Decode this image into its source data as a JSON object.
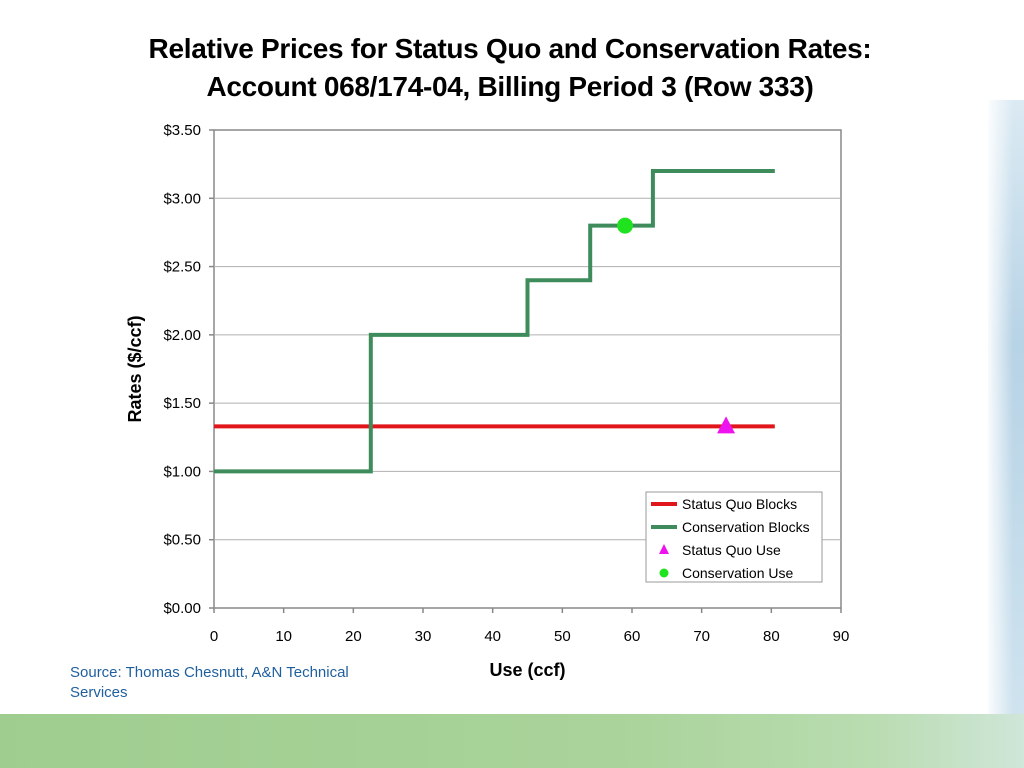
{
  "title_line1": "Relative Prices for Status Quo and Conservation Rates:",
  "title_line2": "Account 068/174-04, Billing Period 3 (Row 333)",
  "source": "Source:  Thomas Chesnutt, A&N Technical Services",
  "colors": {
    "status_quo": "#e0161b",
    "conservation": "#3e8c5c",
    "status_quo_use": "#ee12ee",
    "conservation_use": "#1ee31e"
  },
  "chart_data": {
    "type": "line",
    "title": "Relative Prices for Status Quo and Conservation Rates: Account 068/174-04, Billing Period 3 (Row 333)",
    "xlabel": "Use (ccf)",
    "ylabel": "Rates ($/ccf)",
    "xlim": [
      0,
      90
    ],
    "ylim": [
      0,
      3.5
    ],
    "xticks": [
      0,
      10,
      20,
      30,
      40,
      50,
      60,
      70,
      80,
      90
    ],
    "xtick_labels": [
      "0",
      "10",
      "20",
      "30",
      "40",
      "50",
      "60",
      "70",
      "80",
      "90"
    ],
    "yticks": [
      0,
      0.5,
      1.0,
      1.5,
      2.0,
      2.5,
      3.0,
      3.5
    ],
    "ytick_labels": [
      "$0.00",
      "$0.50",
      "$1.00",
      "$1.50",
      "$2.00",
      "$2.50",
      "$3.00",
      "$3.50"
    ],
    "grid": "horizontal",
    "legend_position": "bottom-right",
    "series": [
      {
        "name": "Status Quo Blocks",
        "kind": "step-line",
        "points": [
          [
            0,
            1.33
          ],
          [
            80.5,
            1.33
          ]
        ]
      },
      {
        "name": "Conservation Blocks",
        "kind": "step-line",
        "points": [
          [
            0,
            1.0
          ],
          [
            22.5,
            1.0
          ],
          [
            22.5,
            2.0
          ],
          [
            45,
            2.0
          ],
          [
            45,
            2.4
          ],
          [
            54,
            2.4
          ],
          [
            54,
            2.8
          ],
          [
            63,
            2.8
          ],
          [
            63,
            3.2
          ],
          [
            80.5,
            3.2
          ]
        ]
      },
      {
        "name": "Status Quo Use",
        "kind": "marker",
        "marker": "triangle",
        "points": [
          [
            73.5,
            1.33
          ]
        ]
      },
      {
        "name": "Conservation Use",
        "kind": "marker",
        "marker": "circle",
        "points": [
          [
            59,
            2.8
          ]
        ]
      }
    ]
  }
}
